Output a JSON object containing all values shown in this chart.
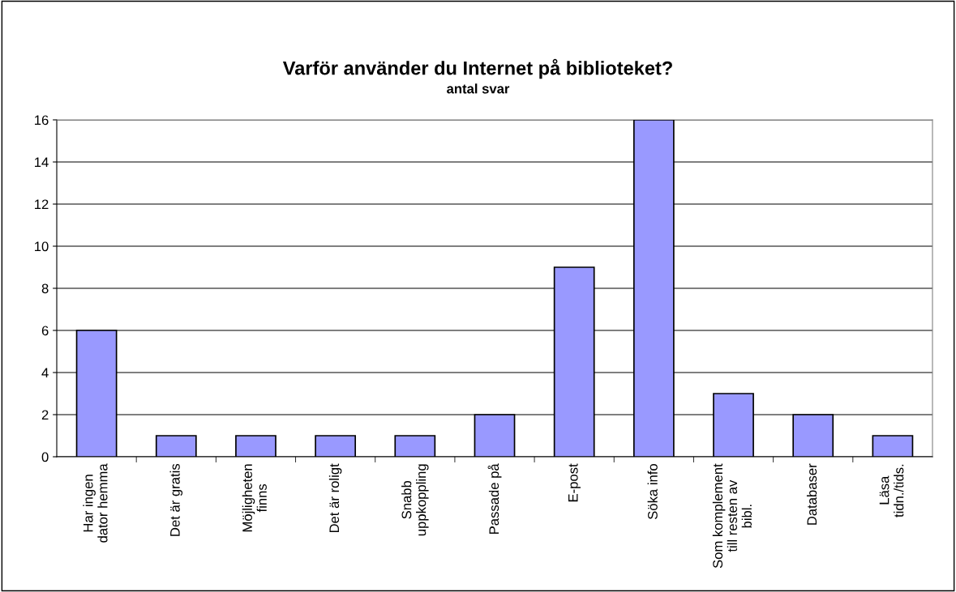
{
  "chart_data": {
    "type": "bar",
    "title": "Varför använder du Internet på biblioteket?",
    "subtitle": "antal svar",
    "categories": [
      "Har ingen dator hemma",
      "Det är gratis",
      "Möjligheten finns",
      "Det är roligt",
      "Snabb uppkoppling",
      "Passade på",
      "E-post",
      "Söka info",
      "Som komplement till resten av bibl.",
      "Databaser",
      "Läsa tidn./tids."
    ],
    "values": [
      6,
      1,
      1,
      1,
      1,
      2,
      9,
      16,
      3,
      2,
      1
    ],
    "color": "#9999ff",
    "ylim": [
      0,
      16
    ],
    "yticks": [
      0,
      2,
      4,
      6,
      8,
      10,
      12,
      14,
      16
    ],
    "grid": "y",
    "legend": false
  }
}
